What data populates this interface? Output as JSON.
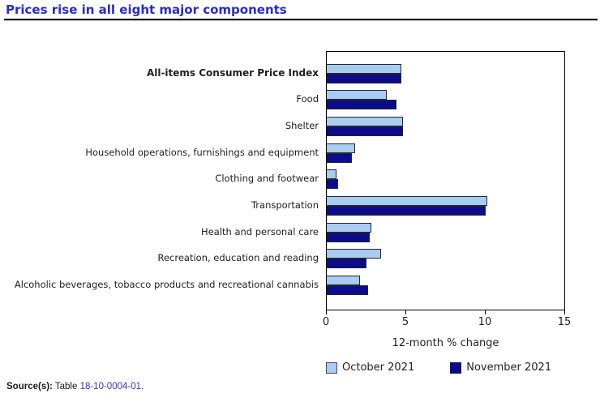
{
  "header": {
    "title": "Prices rise in all eight major components"
  },
  "chart_data": {
    "type": "bar",
    "orientation": "horizontal",
    "title": "Prices rise in all eight major components",
    "categories": [
      "All-items Consumer Price Index",
      "Food",
      "Shelter",
      "Household operations, furnishings and equipment",
      "Clothing and footwear",
      "Transportation",
      "Health and personal care",
      "Recreation, education and reading",
      "Alcoholic beverages, tobacco products and recreational cannabis"
    ],
    "emphasized_category": "All-items Consumer Price Index",
    "series": [
      {
        "name": "October 2021",
        "color": "#a8ccf2",
        "values": [
          4.7,
          3.8,
          4.8,
          1.8,
          0.6,
          10.1,
          2.8,
          3.4,
          2.1
        ]
      },
      {
        "name": "November 2021",
        "color": "#0b0b8c",
        "values": [
          4.7,
          4.4,
          4.8,
          1.6,
          0.7,
          10.0,
          2.7,
          2.5,
          2.6
        ]
      }
    ],
    "xlabel": "12-month % change",
    "ylabel": "",
    "xlim": [
      0,
      15
    ],
    "xticks": [
      0,
      5,
      10,
      15
    ],
    "grid": false,
    "legend_position": "bottom"
  },
  "source": {
    "prefix": "Source(s):",
    "text": " Table ",
    "link": "18-10-0004-01",
    "suffix": "."
  },
  "colors": {
    "title": "#2a2ad2",
    "link": "#3333cc",
    "bar_border": "#262626",
    "october": "#a8ccf2",
    "november": "#0b0b8c"
  }
}
